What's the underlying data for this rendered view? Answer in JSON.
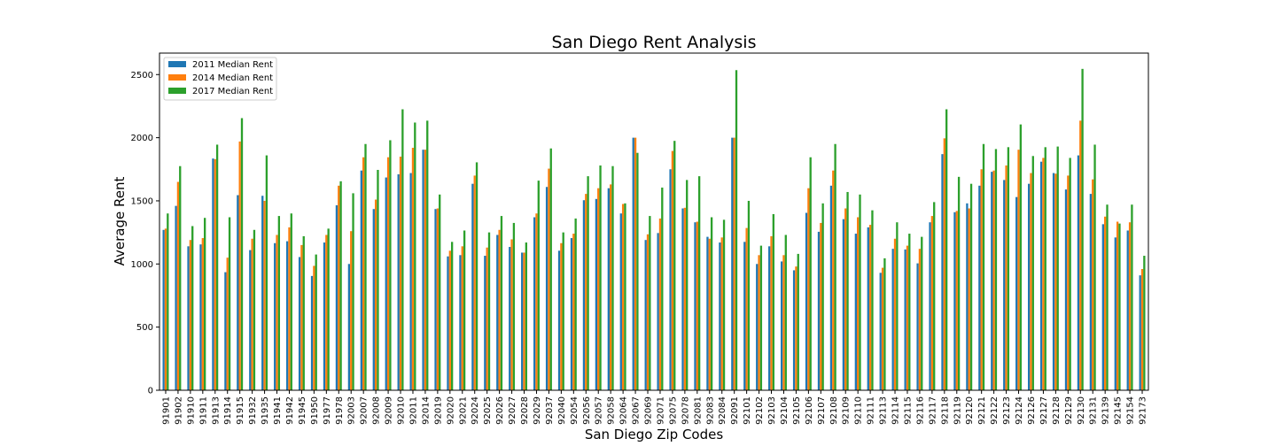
{
  "chart_data": {
    "type": "bar",
    "title": "San Diego Rent Analysis",
    "xlabel": "San Diego Zip Codes",
    "ylabel": "Average Rent",
    "ylim": [
      0,
      2670
    ],
    "yticks": [
      0,
      500,
      1000,
      1500,
      2000,
      2500
    ],
    "grid": false,
    "legend_position": "top-left",
    "categories": [
      "91901",
      "91902",
      "91910",
      "91911",
      "91913",
      "91914",
      "91915",
      "91932",
      "91935",
      "91941",
      "91942",
      "91945",
      "91950",
      "91977",
      "91978",
      "92003",
      "92007",
      "92008",
      "92009",
      "92010",
      "92011",
      "92014",
      "92019",
      "92020",
      "92021",
      "92024",
      "92025",
      "92026",
      "92027",
      "92028",
      "92029",
      "92037",
      "92040",
      "92054",
      "92056",
      "92057",
      "92058",
      "92064",
      "92067",
      "92069",
      "92071",
      "92075",
      "92078",
      "92081",
      "92083",
      "92084",
      "92091",
      "92101",
      "92102",
      "92103",
      "92104",
      "92105",
      "92106",
      "92107",
      "92108",
      "92109",
      "92110",
      "92111",
      "92113",
      "92114",
      "92115",
      "92116",
      "92117",
      "92118",
      "92119",
      "92120",
      "92121",
      "92122",
      "92123",
      "92124",
      "92126",
      "92127",
      "92128",
      "92129",
      "92130",
      "92131",
      "92139",
      "92145",
      "92154",
      "92173"
    ],
    "series": [
      {
        "name": "2011 Median Rent",
        "color": "#1f77b4",
        "values": [
          1270,
          1460,
          1140,
          1155,
          1835,
          935,
          1545,
          1110,
          1540,
          1165,
          1180,
          1055,
          905,
          1170,
          1465,
          1000,
          1740,
          1435,
          1685,
          1710,
          1720,
          1905,
          1435,
          1060,
          1070,
          1635,
          1065,
          1230,
          1135,
          1090,
          1370,
          1610,
          1105,
          1205,
          1505,
          1515,
          1600,
          1400,
          2000,
          1190,
          1245,
          1750,
          1440,
          1330,
          1215,
          1170,
          2000,
          1175,
          1000,
          1140,
          1020,
          950,
          1405,
          1255,
          1620,
          1355,
          1240,
          1290,
          930,
          1120,
          1115,
          1005,
          1330,
          1870,
          1410,
          1480,
          1620,
          1730,
          1665,
          1530,
          1635,
          1810,
          1720,
          1590,
          1860,
          1555,
          1315,
          1210,
          1265,
          910
        ]
      },
      {
        "name": "2014 Median Rent",
        "color": "#ff7f0e",
        "values": [
          1280,
          1650,
          1190,
          1205,
          1830,
          1050,
          1970,
          1200,
          1500,
          1230,
          1290,
          1150,
          985,
          1230,
          1620,
          1260,
          1845,
          1510,
          1845,
          1850,
          1920,
          1905,
          1440,
          1105,
          1140,
          1700,
          1130,
          1270,
          1195,
          1090,
          1400,
          1755,
          1165,
          1240,
          1555,
          1600,
          1630,
          1475,
          2000,
          1235,
          1360,
          1895,
          1445,
          1335,
          1200,
          1210,
          2000,
          1285,
          1070,
          1220,
          1070,
          980,
          1600,
          1325,
          1740,
          1440,
          1370,
          1310,
          970,
          1200,
          1145,
          1120,
          1380,
          1995,
          1420,
          1440,
          1750,
          1740,
          1780,
          1905,
          1720,
          1840,
          1715,
          1700,
          2135,
          1670,
          1375,
          1335,
          1330,
          960
        ]
      },
      {
        "name": "2017 Median Rent",
        "color": "#2ca02c",
        "values": [
          1400,
          1775,
          1300,
          1365,
          1945,
          1370,
          2155,
          1270,
          1860,
          1380,
          1400,
          1220,
          1075,
          1280,
          1655,
          1560,
          1950,
          1745,
          1980,
          2225,
          2120,
          2135,
          1550,
          1175,
          1265,
          1805,
          1250,
          1380,
          1325,
          1170,
          1660,
          1915,
          1250,
          1360,
          1695,
          1780,
          1775,
          1480,
          1880,
          1380,
          1605,
          1975,
          1665,
          1695,
          1370,
          1350,
          2535,
          1500,
          1145,
          1395,
          1230,
          1080,
          1845,
          1480,
          1950,
          1570,
          1550,
          1425,
          1045,
          1330,
          1240,
          1215,
          1490,
          2225,
          1690,
          1635,
          1950,
          1910,
          1925,
          2105,
          1855,
          1925,
          1930,
          1840,
          2545,
          1945,
          1470,
          1320,
          1470,
          1065
        ]
      }
    ]
  }
}
